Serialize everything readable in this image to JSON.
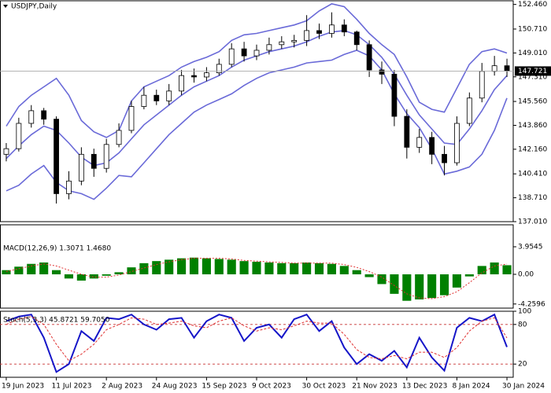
{
  "chart_data": [
    {
      "type": "candlestick",
      "title": "USDJPY,Daily",
      "categories": [
        "19 Jun 2023",
        null,
        null,
        null,
        "11 Jul 2023",
        null,
        null,
        null,
        "2 Aug 2023",
        null,
        null,
        null,
        "24 Aug 2023",
        null,
        null,
        null,
        "15 Sep 2023",
        null,
        null,
        null,
        "9 Oct 2023",
        null,
        null,
        null,
        "30 Oct 2023",
        null,
        null,
        null,
        "21 Nov 2023",
        null,
        null,
        null,
        "13 Dec 2023",
        null,
        null,
        null,
        "8 Jan 2024",
        null,
        null,
        null,
        "30 Jan 2024"
      ],
      "open": [
        141.8,
        142.2,
        144.0,
        144.9,
        144.3,
        139.0,
        139.9,
        141.8,
        140.8,
        142.5,
        143.5,
        145.2,
        146.0,
        145.6,
        146.3,
        147.4,
        147.3,
        147.6,
        148.2,
        149.3,
        148.8,
        149.2,
        149.6,
        149.8,
        149.9,
        150.6,
        150.4,
        151.0,
        150.5,
        149.6,
        147.8,
        147.5,
        144.5,
        142.3,
        143.0,
        141.8,
        141.2,
        144.0,
        145.8,
        147.7,
        148.1
      ],
      "high": [
        142.6,
        144.4,
        145.3,
        145.1,
        144.5,
        140.6,
        142.3,
        142.2,
        142.9,
        144.0,
        145.6,
        146.6,
        146.4,
        146.8,
        147.8,
        147.9,
        148.0,
        148.6,
        149.7,
        149.8,
        149.6,
        150.1,
        150.2,
        150.3,
        151.7,
        151.1,
        151.9,
        151.4,
        150.6,
        149.9,
        148.4,
        147.8,
        145.0,
        143.6,
        143.4,
        142.4,
        144.5,
        146.2,
        148.3,
        148.8,
        148.6
      ],
      "low": [
        141.3,
        142.0,
        143.7,
        143.9,
        138.3,
        138.6,
        139.6,
        140.2,
        140.5,
        142.3,
        143.3,
        145.0,
        145.3,
        145.3,
        146.0,
        146.9,
        147.0,
        147.4,
        148.0,
        148.4,
        148.5,
        148.9,
        149.3,
        149.4,
        149.5,
        150.0,
        150.1,
        150.2,
        149.2,
        147.3,
        146.8,
        143.8,
        141.5,
        141.9,
        141.1,
        140.3,
        141.0,
        143.8,
        145.5,
        147.4,
        147.3
      ],
      "close": [
        142.2,
        144.0,
        144.9,
        144.3,
        139.0,
        139.9,
        141.8,
        140.8,
        142.5,
        143.5,
        145.2,
        146.0,
        145.6,
        146.3,
        147.4,
        147.3,
        147.6,
        148.2,
        149.3,
        148.8,
        149.2,
        149.6,
        149.8,
        149.9,
        150.6,
        150.4,
        151.0,
        150.5,
        149.6,
        147.8,
        147.5,
        144.5,
        142.3,
        143.0,
        141.8,
        141.2,
        144.0,
        145.8,
        147.7,
        148.1,
        147.721
      ],
      "color_up": "#ffffff",
      "color_down": "#000000",
      "bands": {
        "color": "#6a6ad8",
        "upper": [
          143.8,
          145.2,
          146.0,
          146.6,
          147.2,
          146.0,
          144.2,
          143.4,
          143.0,
          143.5,
          145.6,
          146.6,
          147.0,
          147.4,
          148.0,
          148.4,
          148.7,
          149.1,
          149.9,
          150.3,
          150.4,
          150.6,
          150.8,
          151.0,
          151.3,
          152.0,
          152.5,
          152.3,
          151.4,
          150.4,
          149.6,
          148.9,
          147.3,
          145.5,
          145.0,
          144.8,
          146.5,
          148.2,
          149.1,
          149.3,
          149.0
        ],
        "middle": [
          141.5,
          142.4,
          143.2,
          143.8,
          143.5,
          142.6,
          141.6,
          141.0,
          141.2,
          141.9,
          142.9,
          143.9,
          144.6,
          145.3,
          146.0,
          146.6,
          147.0,
          147.4,
          148.0,
          148.5,
          148.8,
          149.1,
          149.3,
          149.5,
          149.8,
          150.2,
          150.5,
          150.6,
          150.3,
          149.6,
          148.7,
          147.5,
          146.0,
          144.6,
          143.6,
          142.6,
          142.5,
          143.6,
          144.9,
          146.4,
          147.4
        ],
        "lower": [
          139.2,
          139.6,
          140.4,
          141.0,
          139.8,
          139.2,
          139.0,
          138.6,
          139.4,
          140.3,
          140.2,
          141.2,
          142.2,
          143.2,
          144.0,
          144.8,
          145.3,
          145.7,
          146.1,
          146.7,
          147.2,
          147.6,
          147.8,
          148.0,
          148.3,
          148.4,
          148.5,
          148.9,
          149.2,
          148.8,
          147.8,
          146.1,
          144.7,
          143.7,
          142.2,
          140.4,
          140.6,
          140.9,
          141.8,
          143.5,
          145.8
        ]
      },
      "ylim": [
        137.01,
        152.72
      ],
      "yticks": [
        {
          "value": 152.46,
          "label": "152.460"
        },
        {
          "value": 150.71,
          "label": "150.710"
        },
        {
          "value": 149.01,
          "label": "149.010"
        },
        {
          "value": 147.31,
          "label": "147.310"
        },
        {
          "value": 145.56,
          "label": "145.560"
        },
        {
          "value": 143.86,
          "label": "143.860"
        },
        {
          "value": 142.16,
          "label": "142.160"
        },
        {
          "value": 140.41,
          "label": "140.410"
        },
        {
          "value": 138.71,
          "label": "138.710"
        },
        {
          "value": 137.01,
          "label": "137.010"
        }
      ],
      "last_price": 147.721
    },
    {
      "type": "bar",
      "title": "MACD(12,26,9) 1.3071 1.4680",
      "color": "#008000",
      "values": [
        0.6,
        1.1,
        1.5,
        1.7,
        0.6,
        -0.6,
        -0.9,
        -0.6,
        -0.2,
        0.3,
        1.0,
        1.6,
        1.9,
        2.1,
        2.3,
        2.4,
        2.3,
        2.2,
        2.1,
        1.9,
        1.8,
        1.7,
        1.6,
        1.6,
        1.7,
        1.6,
        1.5,
        1.2,
        0.6,
        -0.4,
        -1.4,
        -2.8,
        -3.8,
        -3.6,
        -3.4,
        -3.0,
        -1.9,
        -0.3,
        1.2,
        1.7,
        1.3071
      ],
      "signal": {
        "color": "#e03030",
        "values": [
          0.4,
          0.8,
          1.2,
          1.5,
          1.2,
          0.6,
          0.0,
          -0.4,
          -0.4,
          -0.1,
          0.4,
          0.9,
          1.4,
          1.8,
          2.1,
          2.3,
          2.3,
          2.3,
          2.2,
          2.0,
          1.9,
          1.8,
          1.7,
          1.6,
          1.6,
          1.6,
          1.6,
          1.4,
          1.0,
          0.4,
          -0.4,
          -1.6,
          -2.8,
          -3.4,
          -3.5,
          -3.2,
          -2.5,
          -1.2,
          0.2,
          1.2,
          1.468
        ]
      },
      "ylim": [
        -4.85,
        7.11
      ],
      "yticks": [
        3.9545,
        {
          "value": 0,
          "label": "0.00"
        },
        -4.2596
      ]
    },
    {
      "type": "line",
      "title": "Stoch(5,3,3) 45.8721 59.7050",
      "series": [
        {
          "color": "#1515c8",
          "values": [
            85,
            92,
            95,
            60,
            8,
            20,
            70,
            55,
            90,
            88,
            95,
            80,
            72,
            88,
            90,
            60,
            85,
            95,
            90,
            55,
            75,
            80,
            60,
            88,
            95,
            70,
            85,
            45,
            20,
            35,
            25,
            40,
            15,
            60,
            30,
            10,
            75,
            90,
            85,
            95,
            45.8721
          ]
        },
        {
          "color": "#e03030",
          "values": [
            80,
            88,
            92,
            80,
            50,
            25,
            35,
            50,
            72,
            80,
            90,
            88,
            80,
            82,
            85,
            78,
            75,
            85,
            90,
            78,
            70,
            75,
            72,
            78,
            85,
            82,
            82,
            65,
            42,
            30,
            28,
            33,
            28,
            38,
            38,
            30,
            45,
            70,
            85,
            90,
            59.705
          ]
        }
      ],
      "levels": [
        80,
        20
      ],
      "level_color": "#c83030",
      "ylim": [
        0,
        100
      ],
      "yticks": [
        100,
        80,
        20
      ]
    }
  ]
}
